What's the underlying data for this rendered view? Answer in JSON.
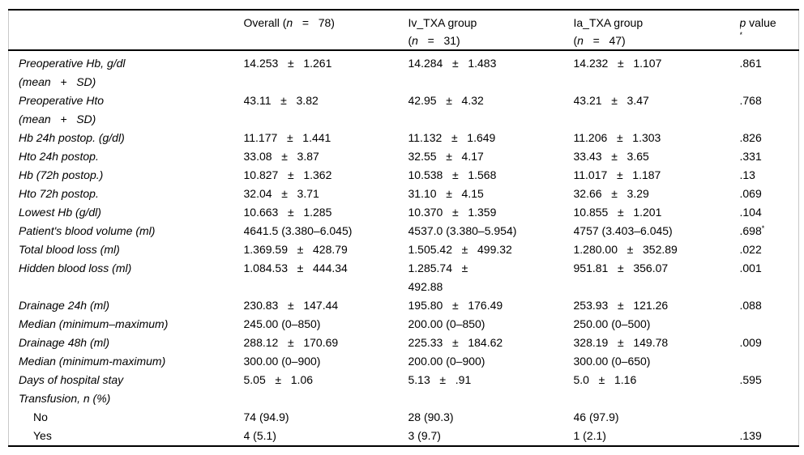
{
  "table": {
    "header": {
      "corner": "",
      "overall": {
        "pre": "Overall (",
        "n": "n",
        "post": "   =   78)"
      },
      "iv": {
        "line1": "Iv_TXA group",
        "open": "(",
        "n": "n",
        "post": "   =   31)"
      },
      "ia": {
        "line1": "Ia_TXA group",
        "open": "(",
        "n": "n",
        "post": "   =   47)"
      },
      "p": {
        "p": "p",
        "rest": " value",
        "footnote": "*"
      }
    },
    "rows": [
      {
        "label": "Preoperative Hb, g/dl",
        "label2": "(mean   +   SD)",
        "overall": "14.253   ±   1.261",
        "iv": "14.284   ±   1.483",
        "ia": "14.232   ±   1.107",
        "p": ".861"
      },
      {
        "label": "Preoperative Hto",
        "label2": "(mean   +   SD)",
        "overall": "43.11   ±   3.82",
        "iv": "42.95   ±   4.32",
        "ia": "43.21   ±   3.47",
        "p": ".768"
      },
      {
        "label": "Hb 24h postop. (g/dl)",
        "overall": "11.177   ±   1.441",
        "iv": "11.132   ±   1.649",
        "ia": "11.206   ±   1.303",
        "p": ".826"
      },
      {
        "label": "Hto 24h postop.",
        "overall": "33.08   ±   3.87",
        "iv": "32.55   ±   4.17",
        "ia": "33.43   ±   3.65",
        "p": ".331"
      },
      {
        "label": "Hb (72h postop.)",
        "overall": "10.827   ±   1.362",
        "iv": "10.538   ±   1.568",
        "ia": "11.017   ±   1.187",
        "p": ".13"
      },
      {
        "label": "Hto 72h postop.",
        "overall": "32.04   ±   3.71",
        "iv": "31.10   ±   4.15",
        "ia": "32.66   ±   3.29",
        "p": ".069"
      },
      {
        "label": "Lowest Hb (g/dl)",
        "overall": "10.663   ±   1.285",
        "iv": "10.370   ±   1.359",
        "ia": "10.855   ±   1.201",
        "p": ".104"
      },
      {
        "label": "Patient's blood volume (ml)",
        "overall": "4641.5 (3.380–6.045)",
        "iv": "4537.0 (3.380–5.954)",
        "ia": "4757 (3.403–6.045)",
        "p": ".698",
        "p_sup": "*"
      },
      {
        "label": "Total blood loss (ml)",
        "overall": "1.369.59   ±   428.79",
        "iv": "1.505.42   ±   499.32",
        "ia": "1.280.00   ±   352.89",
        "p": ".022"
      },
      {
        "label": "Hidden blood loss (ml)",
        "overall": "1.084.53   ±   444.34",
        "iv": "1.285.74   ±\n492.88",
        "ia": "951.81   ±   356.07",
        "p": ".001"
      },
      {
        "label": "Drainage 24h (ml)",
        "overall": "230.83   ±   147.44",
        "iv": "195.80   ±   176.49",
        "ia": "253.93   ±   121.26",
        "p": ".088"
      },
      {
        "label": "Median (minimum–maximum)",
        "overall": "245.00 (0–850)",
        "iv": "200.00 (0–850)",
        "ia": "250.00 (0–500)",
        "p": ""
      },
      {
        "label": "Drainage 48h (ml)",
        "overall": "288.12   ±   170.69",
        "iv": "225.33   ±   184.62",
        "ia": "328.19   ±   149.78",
        "p": ".009"
      },
      {
        "label": "Median (minimum-maximum)",
        "overall": "300.00 (0–900)",
        "iv": "200.00 (0–900)",
        "ia": "300.00 (0–650)",
        "p": ""
      },
      {
        "label": "Days of hospital stay",
        "overall": "5.05   ±   1.06",
        "iv": "5.13   ±   .91",
        "ia": "5.0   ±   1.16",
        "p": ".595"
      },
      {
        "label": "Transfusion, n (%)",
        "overall": "",
        "iv": "",
        "ia": "",
        "p": ""
      },
      {
        "label": "No",
        "overall": "74 (94.9)",
        "iv": "28 (90.3)",
        "ia": "46 (97.9)",
        "p": ""
      },
      {
        "label": "Yes",
        "overall": "4 (5.1)",
        "iv": "3 (9.7)",
        "ia": "1 (2.1)",
        "p": ".139"
      }
    ],
    "colors": {
      "text": "#000000",
      "rule": "#000000",
      "edge": "#c9c9c9",
      "background": "#ffffff"
    }
  }
}
